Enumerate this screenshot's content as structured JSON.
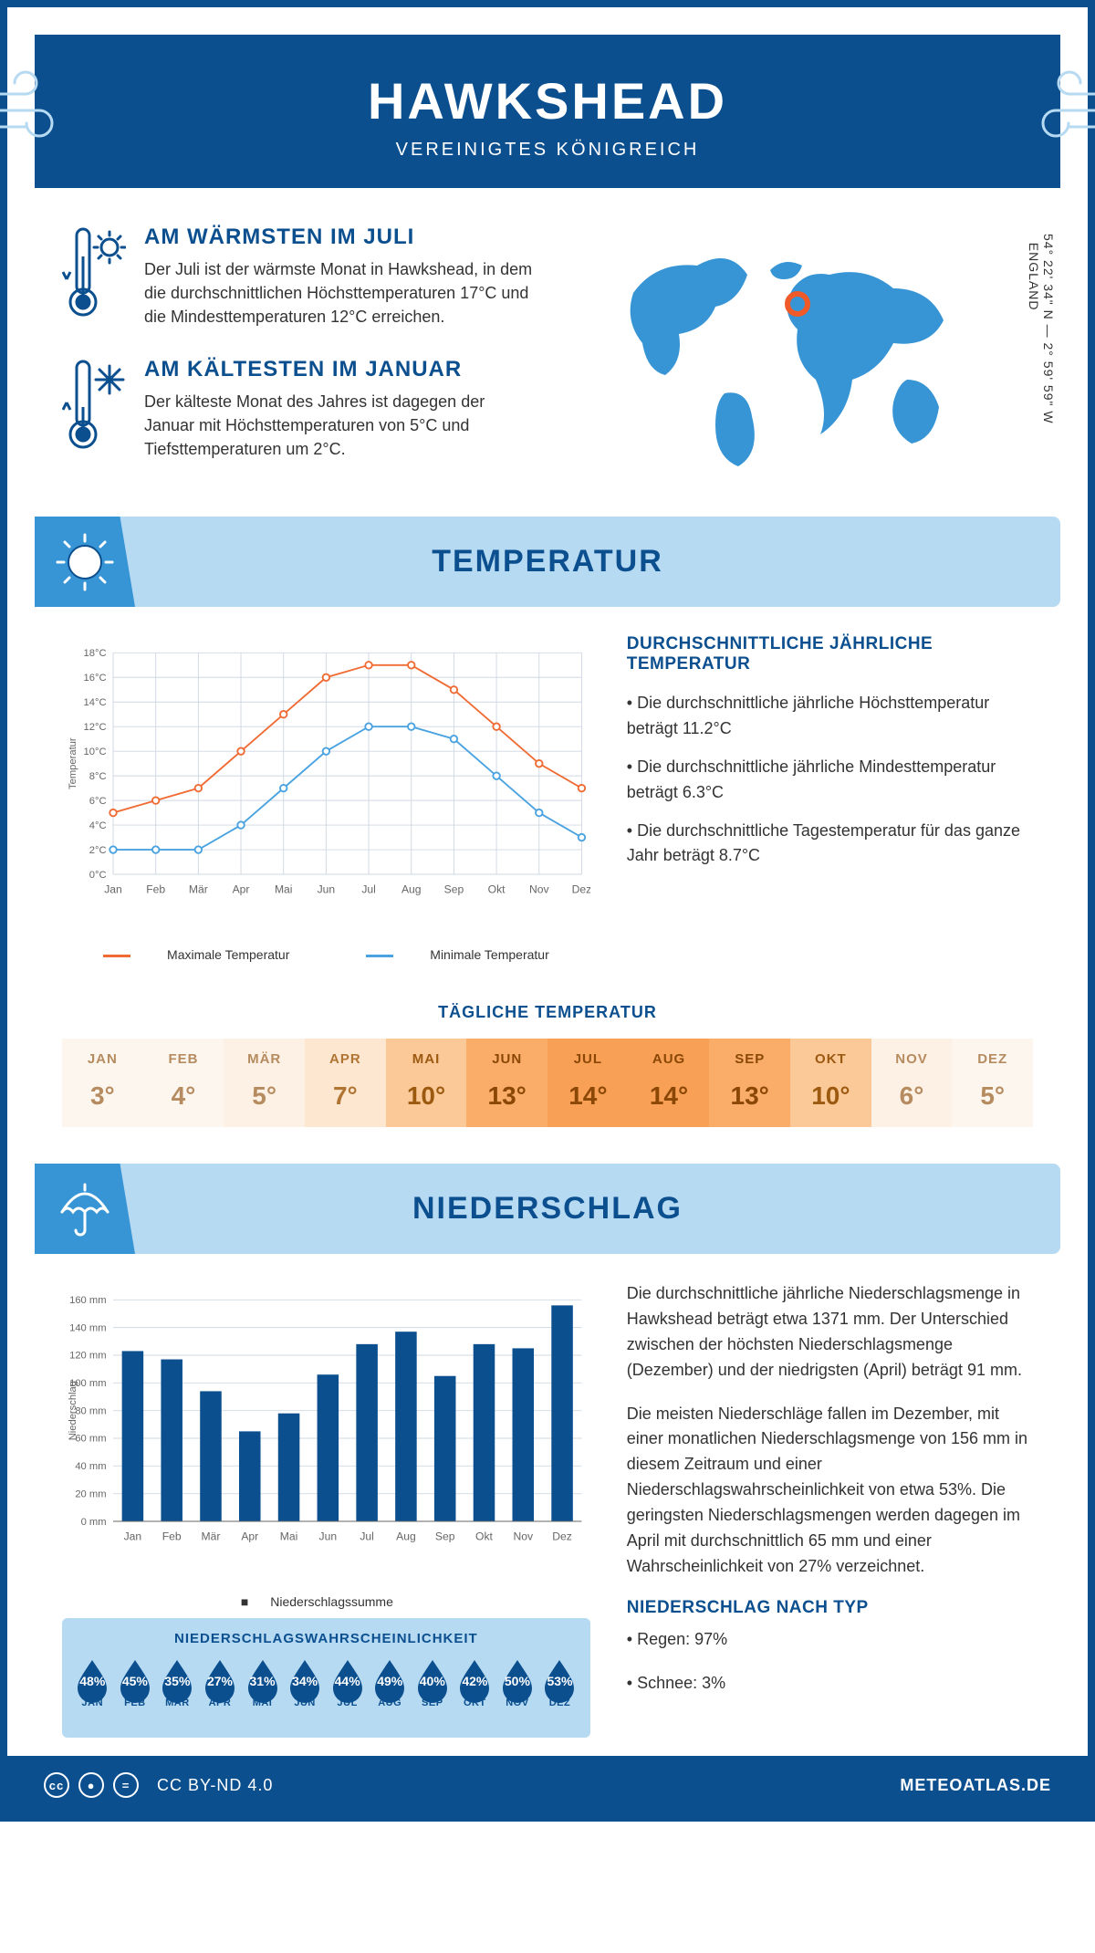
{
  "colors": {
    "primary": "#0b4f8f",
    "banner_bg": "#b7daf3",
    "banner_icon_bg": "#3795d6",
    "line_max": "#f06b33",
    "line_min": "#4aa3e0",
    "bar": "#0b4f8f",
    "grid": "#cfd8e3",
    "text": "#333333"
  },
  "header": {
    "title": "HAWKSHEAD",
    "subtitle": "VEREINIGTES KÖNIGREICH"
  },
  "coords": {
    "line": "54° 22' 34\" N — 2° 59' 59\" W",
    "region": "ENGLAND"
  },
  "intro": {
    "warm": {
      "title": "AM WÄRMSTEN IM JULI",
      "text": "Der Juli ist der wärmste Monat in Hawkshead, in dem die durchschnittlichen Höchsttemperaturen 17°C und die Mindesttemperaturen 12°C erreichen."
    },
    "cold": {
      "title": "AM KÄLTESTEN IM JANUAR",
      "text": "Der kälteste Monat des Jahres ist dagegen der Januar mit Höchsttemperaturen von 5°C und Tiefsttemperaturen um 2°C."
    }
  },
  "temp_section": {
    "banner": "TEMPERATUR",
    "chart": {
      "type": "line",
      "months": [
        "Jan",
        "Feb",
        "Mär",
        "Apr",
        "Mai",
        "Jun",
        "Jul",
        "Aug",
        "Sep",
        "Okt",
        "Nov",
        "Dez"
      ],
      "max": [
        5,
        6,
        7,
        10,
        13,
        16,
        17,
        17,
        15,
        12,
        9,
        7
      ],
      "min": [
        2,
        2,
        2,
        4,
        7,
        10,
        12,
        12,
        11,
        8,
        5,
        3
      ],
      "ylim": [
        0,
        18
      ],
      "ystep": 2,
      "yunit": "°C",
      "ylabel": "Temperatur",
      "legend_max": "Maximale Temperatur",
      "legend_min": "Minimale Temperatur",
      "line_width": 2,
      "marker": "circle",
      "marker_size": 4
    },
    "summary": {
      "title": "DURCHSCHNITTLICHE JÄHRLICHE TEMPERATUR",
      "points": [
        "• Die durchschnittliche jährliche Höchsttemperatur beträgt 11.2°C",
        "• Die durchschnittliche jährliche Mindesttemperatur beträgt 6.3°C",
        "• Die durchschnittliche Tagestemperatur für das ganze Jahr beträgt 8.7°C"
      ]
    },
    "daily": {
      "title": "TÄGLICHE TEMPERATUR",
      "months": [
        "JAN",
        "FEB",
        "MÄR",
        "APR",
        "MAI",
        "JUN",
        "JUL",
        "AUG",
        "SEP",
        "OKT",
        "NOV",
        "DEZ"
      ],
      "values": [
        "3°",
        "4°",
        "5°",
        "7°",
        "10°",
        "13°",
        "14°",
        "14°",
        "13°",
        "10°",
        "6°",
        "5°"
      ],
      "cell_bg": [
        "#fdf6ef",
        "#fdf6ef",
        "#fdf1e5",
        "#fde7d0",
        "#fbc998",
        "#f9ad69",
        "#f8a055",
        "#f8a055",
        "#f9ad69",
        "#fbc998",
        "#fdf1e5",
        "#fdf6ef"
      ],
      "cell_fg": [
        "#b58b5f",
        "#b58b5f",
        "#b58b5f",
        "#b07533",
        "#9c5a10",
        "#8a4706",
        "#8a4706",
        "#8a4706",
        "#8a4706",
        "#9c5a10",
        "#b58b5f",
        "#b58b5f"
      ]
    }
  },
  "precip_section": {
    "banner": "NIEDERSCHLAG",
    "chart": {
      "type": "bar",
      "months": [
        "Jan",
        "Feb",
        "Mär",
        "Apr",
        "Mai",
        "Jun",
        "Jul",
        "Aug",
        "Sep",
        "Okt",
        "Nov",
        "Dez"
      ],
      "values": [
        123,
        117,
        94,
        65,
        78,
        106,
        128,
        137,
        105,
        128,
        125,
        156
      ],
      "ylim": [
        0,
        160
      ],
      "ystep": 20,
      "yunit": " mm",
      "ylabel": "Niederschlag",
      "legend": "Niederschlagssumme",
      "bar_width": 0.55
    },
    "text1": "Die durchschnittliche jährliche Niederschlagsmenge in Hawkshead beträgt etwa 1371 mm. Der Unterschied zwischen der höchsten Niederschlagsmenge (Dezember) und der niedrigsten (April) beträgt 91 mm.",
    "text2": "Die meisten Niederschläge fallen im Dezember, mit einer monatlichen Niederschlagsmenge von 156 mm in diesem Zeitraum und einer Niederschlagswahrscheinlichkeit von etwa 53%. Die geringsten Niederschlagsmengen werden dagegen im April mit durchschnittlich 65 mm und einer Wahrscheinlichkeit von 27% verzeichnet.",
    "by_type_title": "NIEDERSCHLAG NACH TYP",
    "by_type": [
      "• Regen: 97%",
      "• Schnee: 3%"
    ],
    "prob": {
      "title": "NIEDERSCHLAGSWAHRSCHEINLICHKEIT",
      "months": [
        "JAN",
        "FEB",
        "MÄR",
        "APR",
        "MAI",
        "JUN",
        "JUL",
        "AUG",
        "SEP",
        "OKT",
        "NOV",
        "DEZ"
      ],
      "values": [
        "48%",
        "45%",
        "35%",
        "27%",
        "31%",
        "34%",
        "44%",
        "49%",
        "40%",
        "42%",
        "50%",
        "53%"
      ]
    }
  },
  "footer": {
    "license": "CC BY-ND 4.0",
    "site": "METEOATLAS.DE"
  }
}
